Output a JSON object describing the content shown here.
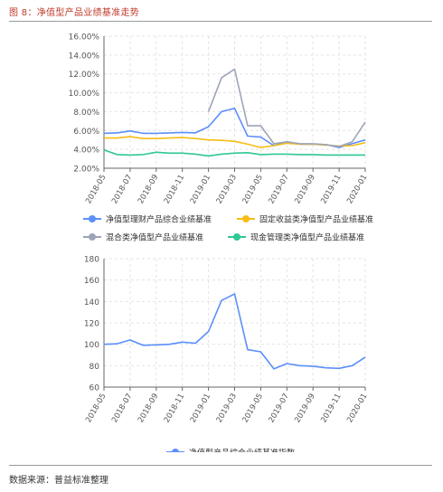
{
  "figure": {
    "title": "图 8：净值型产品业绩基准走势",
    "source": "数据来源：普益标准整理"
  },
  "chart_data": [
    {
      "type": "line",
      "categories": [
        "2018-05",
        "2018-06",
        "2018-07",
        "2018-08",
        "2018-09",
        "2018-10",
        "2018-11",
        "2018-12",
        "2019-01",
        "2019-02",
        "2019-03",
        "2019-04",
        "2019-05",
        "2019-06",
        "2019-07",
        "2019-08",
        "2019-09",
        "2019-10",
        "2019-11",
        "2019-12",
        "2020-01"
      ],
      "tick_labels": [
        "2018-05",
        "2018-07",
        "2018-09",
        "2018-11",
        "2019-01",
        "2019-03",
        "2019-05",
        "2019-07",
        "2019-09",
        "2019-11",
        "2020-01"
      ],
      "y_ticks": [
        "2.00%",
        "4.00%",
        "6.00%",
        "8.00%",
        "10.00%",
        "12.00%",
        "14.00%",
        "16.00%"
      ],
      "ylim": [
        2,
        16
      ],
      "grid": true,
      "legend_placement": "bottom",
      "series": [
        {
          "name": "净值型理财产品综合业绩基准",
          "color": "#5b8ff9",
          "values": [
            5.7,
            5.75,
            5.95,
            5.7,
            5.7,
            5.75,
            5.8,
            5.75,
            6.4,
            8.0,
            8.35,
            5.4,
            5.3,
            4.4,
            4.8,
            4.55,
            4.55,
            4.5,
            4.2,
            4.6,
            5.0
          ]
        },
        {
          "name": "固定收益类净值型产品业绩基准",
          "color": "#f6bd16",
          "values": [
            5.2,
            5.2,
            5.35,
            5.15,
            5.15,
            5.2,
            5.25,
            5.15,
            5.0,
            4.95,
            4.85,
            4.55,
            4.2,
            4.4,
            4.65,
            4.55,
            4.55,
            4.45,
            4.35,
            4.4,
            4.7
          ]
        },
        {
          "name": "混合类净值型产品业绩基准",
          "color": "#9ca4b8",
          "values": [
            null,
            null,
            null,
            null,
            null,
            null,
            null,
            null,
            8.0,
            11.6,
            12.5,
            6.5,
            6.5,
            4.6,
            4.8,
            4.6,
            4.6,
            4.5,
            4.3,
            4.8,
            6.9
          ]
        },
        {
          "name": "现金管理类净值型产品业绩基准",
          "color": "#2ec795",
          "values": [
            3.95,
            3.45,
            3.4,
            3.45,
            3.7,
            3.6,
            3.6,
            3.5,
            3.3,
            3.5,
            3.6,
            3.65,
            3.45,
            3.5,
            3.5,
            3.45,
            3.45,
            3.4,
            3.4,
            3.4,
            3.4
          ]
        }
      ]
    },
    {
      "type": "line",
      "categories": [
        "2018-05",
        "2018-06",
        "2018-07",
        "2018-08",
        "2018-09",
        "2018-10",
        "2018-11",
        "2018-12",
        "2019-01",
        "2019-02",
        "2019-03",
        "2019-04",
        "2019-05",
        "2019-06",
        "2019-07",
        "2019-08",
        "2019-09",
        "2019-10",
        "2019-11",
        "2019-12",
        "2020-01"
      ],
      "tick_labels": [
        "2018-05",
        "2018-07",
        "2018-09",
        "2018-11",
        "2019-01",
        "2019-03",
        "2019-05",
        "2019-07",
        "2019-09",
        "2019-11",
        "2020-01"
      ],
      "y_ticks": [
        "60",
        "80",
        "100",
        "120",
        "140",
        "160",
        "180"
      ],
      "ylim": [
        60,
        180
      ],
      "grid": true,
      "legend_placement": "bottom",
      "series": [
        {
          "name": "净值型产品综合业绩基准指数",
          "color": "#5b8ff9",
          "values": [
            100,
            100.5,
            104,
            99,
            99.5,
            100,
            102,
            101,
            112,
            141,
            147,
            95,
            93,
            77,
            82,
            80,
            79.5,
            78,
            77.5,
            80,
            88
          ]
        }
      ]
    }
  ]
}
